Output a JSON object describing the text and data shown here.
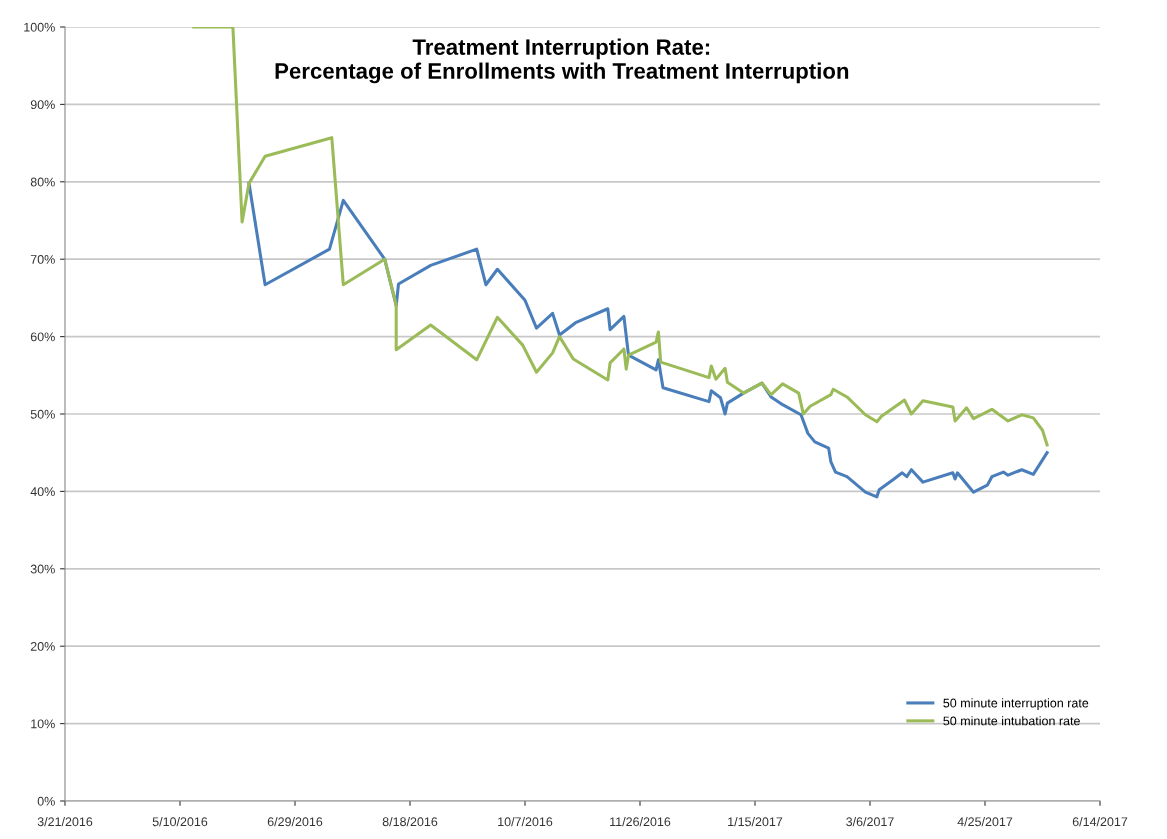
{
  "chart_data": {
    "type": "line",
    "title": "Treatment Interruption Rate:\nPercentage of Enrollments with Treatment Interruption",
    "xlim": [
      "2016-03-21",
      "2017-06-14"
    ],
    "xticks": [
      {
        "value": "2016-03-21",
        "label": "3/21/2016"
      },
      {
        "value": "2016-05-10",
        "label": "5/10/2016"
      },
      {
        "value": "2016-06-29",
        "label": "6/29/2016"
      },
      {
        "value": "2016-08-18",
        "label": "8/18/2016"
      },
      {
        "value": "2016-10-07",
        "label": "10/7/2016"
      },
      {
        "value": "2016-11-26",
        "label": "11/26/2016"
      },
      {
        "value": "2017-01-15",
        "label": "1/15/2017"
      },
      {
        "value": "2017-03-06",
        "label": "3/6/2017"
      },
      {
        "value": "2017-04-25",
        "label": "4/25/2017"
      },
      {
        "value": "2017-06-14",
        "label": "6/14/2017"
      }
    ],
    "ylim": [
      0,
      100
    ],
    "yticks": [
      {
        "value": 0,
        "label": "0%"
      },
      {
        "value": 10,
        "label": "10%"
      },
      {
        "value": 20,
        "label": "20%"
      },
      {
        "value": 30,
        "label": "30%"
      },
      {
        "value": 40,
        "label": "40%"
      },
      {
        "value": 50,
        "label": "50%"
      },
      {
        "value": 60,
        "label": "60%"
      },
      {
        "value": 70,
        "label": "70%"
      },
      {
        "value": 80,
        "label": "80%"
      },
      {
        "value": 90,
        "label": "90%"
      },
      {
        "value": 100,
        "label": "100%"
      }
    ],
    "grid": "y",
    "legend": "bottom right",
    "marker": "none",
    "line_style": "solid",
    "series": [
      {
        "name": "50 minute interruption rate",
        "color": "#4a7ebb",
        "x": [
          "2016-06-09",
          "2016-06-16",
          "2016-07-14",
          "2016-07-20",
          "2016-08-07",
          "2016-08-12",
          "2016-08-13",
          "2016-08-27",
          "2016-09-16",
          "2016-09-20",
          "2016-09-25",
          "2016-10-07",
          "2016-10-12",
          "2016-10-19",
          "2016-10-22",
          "2016-10-29",
          "2016-11-12",
          "2016-11-13",
          "2016-11-19",
          "2016-11-21",
          "2016-12-03",
          "2016-12-04",
          "2016-12-06",
          "2016-12-26",
          "2016-12-27",
          "2016-12-31",
          "2017-01-02",
          "2017-01-03",
          "2017-01-10",
          "2017-01-18",
          "2017-01-22",
          "2017-01-27",
          "2017-02-04",
          "2017-02-07",
          "2017-02-10",
          "2017-02-16",
          "2017-02-17",
          "2017-02-19",
          "2017-02-24",
          "2017-03-04",
          "2017-03-09",
          "2017-03-10",
          "2017-03-16",
          "2017-03-20",
          "2017-03-22",
          "2017-03-24",
          "2017-03-29",
          "2017-04-11",
          "2017-04-12",
          "2017-04-13",
          "2017-04-20",
          "2017-04-26",
          "2017-04-28",
          "2017-05-03",
          "2017-05-05",
          "2017-05-11",
          "2017-05-16",
          "2017-05-22"
        ],
        "values": [
          79.8,
          66.7,
          71.3,
          77.6,
          70.0,
          64.0,
          66.8,
          69.2,
          71.3,
          66.7,
          68.7,
          64.7,
          61.1,
          63.0,
          60.2,
          61.8,
          63.6,
          60.9,
          62.6,
          57.6,
          55.7,
          57.0,
          53.4,
          51.6,
          53.0,
          52.1,
          50.0,
          51.4,
          52.7,
          54.0,
          52.2,
          51.2,
          49.9,
          47.5,
          46.4,
          45.6,
          43.8,
          42.5,
          41.9,
          39.9,
          39.3,
          40.2,
          41.5,
          42.4,
          41.9,
          42.8,
          41.2,
          42.4,
          41.6,
          42.4,
          39.9,
          40.8,
          41.9,
          42.5,
          42.1,
          42.8,
          42.2,
          45.0
        ]
      },
      {
        "name": "50 minute intubation rate",
        "color": "#9bbb59",
        "x": [
          "2016-05-16",
          "2016-06-02",
          "2016-06-06",
          "2016-06-09",
          "2016-06-16",
          "2016-07-15",
          "2016-07-20",
          "2016-08-07",
          "2016-08-12",
          "2016-08-12",
          "2016-08-27",
          "2016-09-16",
          "2016-09-25",
          "2016-10-06",
          "2016-10-12",
          "2016-10-19",
          "2016-10-22",
          "2016-10-28",
          "2016-11-12",
          "2016-11-13",
          "2016-11-19",
          "2016-11-20",
          "2016-11-21",
          "2016-12-03",
          "2016-12-04",
          "2016-12-05",
          "2016-12-26",
          "2016-12-27",
          "2016-12-29",
          "2017-01-02",
          "2017-01-03",
          "2017-01-10",
          "2017-01-18",
          "2017-01-22",
          "2017-01-27",
          "2017-02-03",
          "2017-02-05",
          "2017-02-08",
          "2017-02-17",
          "2017-02-18",
          "2017-02-24",
          "2017-03-04",
          "2017-03-09",
          "2017-03-11",
          "2017-03-21",
          "2017-03-24",
          "2017-03-29",
          "2017-04-11",
          "2017-04-12",
          "2017-04-17",
          "2017-04-20",
          "2017-04-28",
          "2017-05-05",
          "2017-05-11",
          "2017-05-16",
          "2017-05-20",
          "2017-05-22"
        ],
        "values": [
          100,
          100,
          74.8,
          79.8,
          83.3,
          85.7,
          66.7,
          70.0,
          64.1,
          58.3,
          61.5,
          57.0,
          62.5,
          58.9,
          55.4,
          57.9,
          60.0,
          57.1,
          54.4,
          56.6,
          58.4,
          55.8,
          57.6,
          59.3,
          60.6,
          56.7,
          54.7,
          56.2,
          54.5,
          55.9,
          54.1,
          52.7,
          54.0,
          52.5,
          53.9,
          52.7,
          50.0,
          51.0,
          52.5,
          53.2,
          52.2,
          49.9,
          49.0,
          49.7,
          51.8,
          50.0,
          51.7,
          50.9,
          49.1,
          50.8,
          49.4,
          50.6,
          49.1,
          49.9,
          49.5,
          47.9,
          46.0
        ]
      }
    ]
  }
}
